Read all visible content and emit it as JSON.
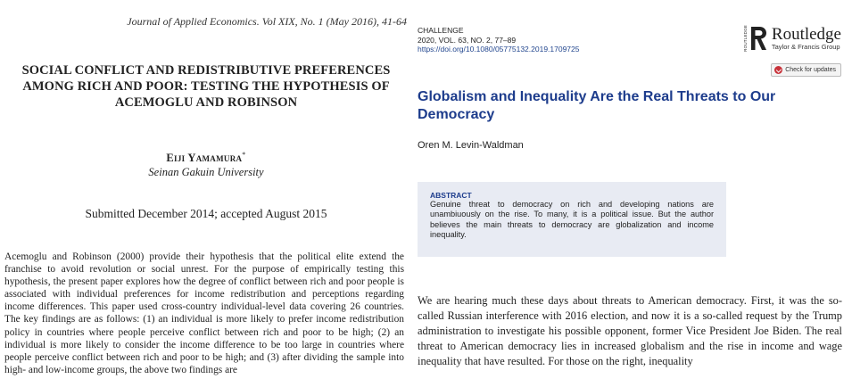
{
  "left": {
    "journal": "Journal of Applied Economics. Vol XIX, No. 1 (May 2016), 41-64",
    "title": "SOCIAL CONFLICT AND REDISTRIBUTIVE PREFERENCES AMONG RICH AND POOR: TESTING THE HYPOTHESIS OF ACEMOGLU AND ROBINSON",
    "author": "Eiji Yamamura",
    "author_mark": "*",
    "affiliation": "Seinan Gakuin University",
    "submitted": "Submitted December 2014; accepted August 2015",
    "abstract": "Acemoglu and Robinson (2000) provide their hypothesis that the political elite extend the franchise to avoid revolution or social unrest. For the purpose of empirically testing this hypothesis, the present paper explores how the degree of conflict between rich and poor people is associated with individual preferences for income redistribution and perceptions regarding income differences. This paper used cross-country individual-level data covering 26 countries. The key findings are as follows: (1) an individual is more likely to prefer income redistribution policy in countries where people perceive conflict between rich and poor to be high; (2) an individual is more likely to consider the income difference to be too large in countries where people perceive conflict between rich and poor to be high; and (3) after dividing the sample into high- and low-income groups, the above two findings are"
  },
  "right": {
    "journal_name": "CHALLENGE",
    "volume": "2020, VOL. 63, NO. 2, 77–89",
    "doi": "https://doi.org/10.1080/05775132.2019.1709725",
    "publisher": "Routledge",
    "publisher_sub": "Taylor & Francis Group",
    "publisher_vertical": "ROUTLEDGE",
    "check_label": "Check for updates",
    "title": "Globalism and Inequality Are the Real Threats to Our Democracy",
    "author": "Oren M. Levin-Waldman",
    "abstract_head": "ABSTRACT",
    "abstract": "Genuine threat to democracy on rich and developing nations are unambiuously on the rise. To many, it is a political issue. But the author believes the main threats to democracy are globalization and income inequality.",
    "body": "We are hearing much these days about threats to American democracy. First, it was the so-called Russian interference with 2016 election, and now it is a so-called request by the Trump administration to investigate his possible opponent, former Vice President Joe Biden. The real threat to American democracy lies in increased globalism and the rise in income and wage inequality that have resulted. For those on the right, inequality",
    "colors": {
      "title": "#1d3c8c",
      "abstract_bg": "#e8ebf3",
      "badge": "#c8323a"
    },
    "icons": [
      "routledge-logo-icon",
      "check-updates-icon"
    ]
  }
}
